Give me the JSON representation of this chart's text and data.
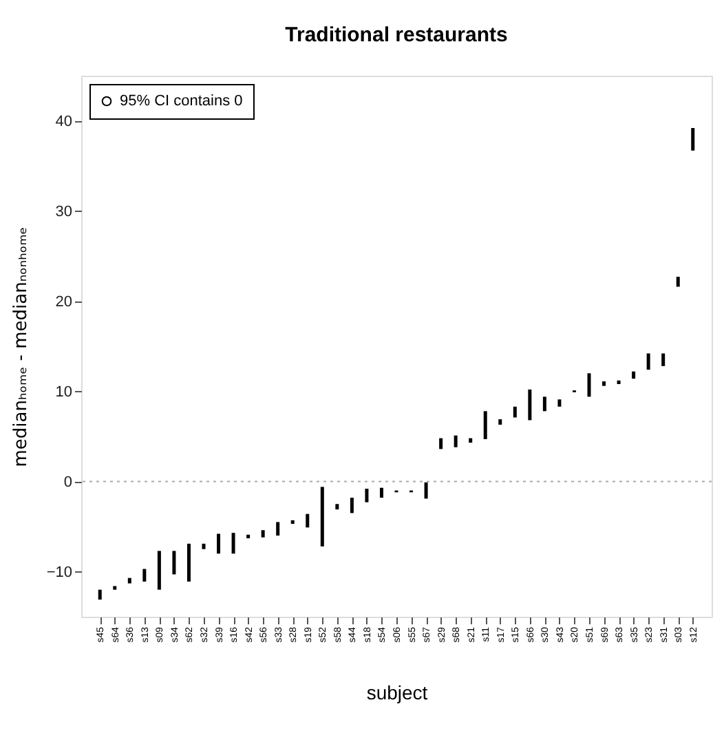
{
  "chart_data": {
    "type": "bar",
    "title": "Traditional restaurants",
    "xlabel": "subject",
    "ylabel": "medianₕₒₘₑ - medianₙₒₙₕₒₘₑ",
    "categories": [
      "s45",
      "s64",
      "s36",
      "s13",
      "s09",
      "s34",
      "s62",
      "s32",
      "s39",
      "s16",
      "s42",
      "s56",
      "s33",
      "s28",
      "s19",
      "s52",
      "s58",
      "s44",
      "s18",
      "s54",
      "s06",
      "s55",
      "s67",
      "s29",
      "s68",
      "s21",
      "s11",
      "s17",
      "s15",
      "s66",
      "s30",
      "s43",
      "s20",
      "s51",
      "s69",
      "s63",
      "s35",
      "s23",
      "s31",
      "s03",
      "s12"
    ],
    "series": [
      {
        "base": [
          -13.1,
          -12.0,
          -11.3,
          -11.1,
          -12.0,
          -10.3,
          -11.1,
          -7.5,
          -8.0,
          -8.0,
          -6.3,
          -6.2,
          -6.0,
          -4.7,
          -5.1,
          -7.2,
          -3.1,
          -3.5,
          -2.3,
          -1.8,
          -1.2,
          -1.2,
          -1.9,
          3.6,
          3.8,
          4.3,
          4.7,
          6.3,
          7.1,
          6.8,
          7.8,
          8.3,
          9.9,
          9.4,
          10.6,
          10.8,
          11.4,
          12.4,
          12.8,
          21.6,
          36.7
        ],
        "color": "#000000",
        "values": [
          1.1,
          0.4,
          0.6,
          1.4,
          4.3,
          2.6,
          4.2,
          0.6,
          2.2,
          2.3,
          0.4,
          0.8,
          1.5,
          0.4,
          1.5,
          6.6,
          0.6,
          1.7,
          1.5,
          1.1,
          0.2,
          0.2,
          1.8,
          1.2,
          1.3,
          0.5,
          3.1,
          0.6,
          1.2,
          3.4,
          1.6,
          0.8,
          0.2,
          2.6,
          0.5,
          0.4,
          0.8,
          1.8,
          1.4,
          1.1,
          2.5
        ]
      },
      {
        "type": "scatter",
        "name": "95% CI contains 0",
        "color": "#000000",
        "marker": "circle",
        "values": [
          null,
          null,
          null,
          null,
          null,
          null,
          null,
          null,
          null,
          null,
          null,
          null,
          null,
          null,
          null,
          null,
          null,
          null,
          null,
          null,
          null,
          null,
          null,
          null,
          null,
          null,
          null,
          null,
          null,
          null,
          null,
          null,
          null,
          null,
          null,
          null,
          null,
          null,
          null,
          null,
          null
        ]
      }
    ],
    "ylim": [
      -15,
      45
    ],
    "yticks": [
      -10,
      0,
      10,
      20,
      30,
      40
    ],
    "grid": false,
    "legend": "top left",
    "ref_lines": [
      {
        "axis": "y",
        "value": 0,
        "color": "#aaaaaa",
        "line_style": "dotted"
      }
    ]
  }
}
